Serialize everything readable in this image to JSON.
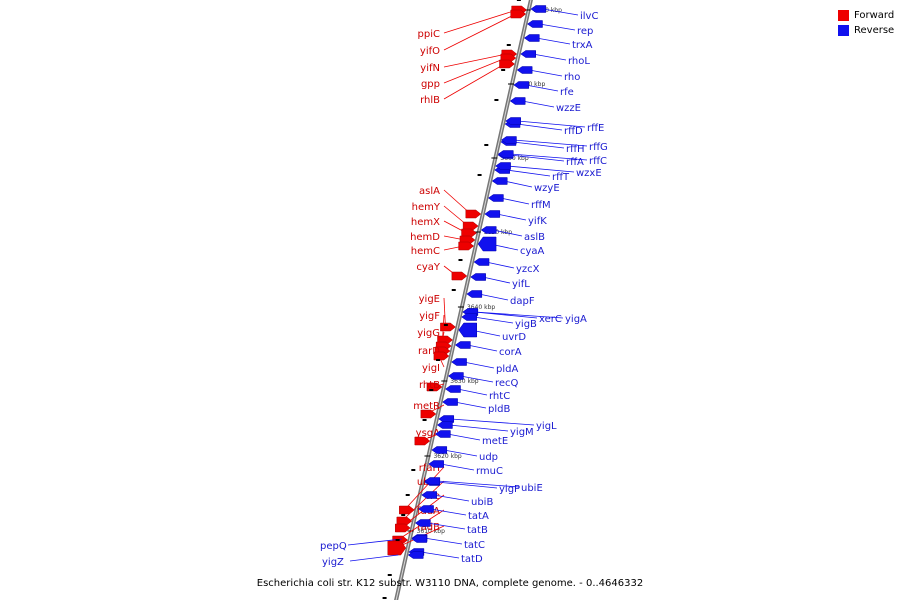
{
  "legend": {
    "forward_label": "Forward",
    "reverse_label": "Reverse",
    "forward_color": "#ee0000",
    "reverse_color": "#1111ee"
  },
  "caption": "Escherichia coli str. K12 substr. W3110 DNA, complete genome. - 0..4646332",
  "ticks": [
    "3680 kbp",
    "3670 kbp",
    "3660 kbp",
    "3650 kbp",
    "3640 kbp",
    "3630 kbp",
    "3620 kbp",
    "3610 kbp"
  ],
  "forward_genes": [
    "ppiC",
    "yifO",
    "yifN",
    "gpp",
    "rhlB",
    "aslA",
    "hemY",
    "hemX",
    "hemD",
    "hemC",
    "cyaY",
    "yigE",
    "yigF",
    "yigG",
    "rarD",
    "yigI",
    "rhtB",
    "metR",
    "ysgA",
    "rfaH",
    "ubiD",
    "fre",
    "fadA",
    "fadB"
  ],
  "reverse_genes": [
    "ilvC",
    "rep",
    "trxA",
    "rhoL",
    "rho",
    "rfe",
    "wzzE",
    "rffD",
    "rffE",
    "rffH",
    "rffG",
    "rffA",
    "rffC",
    "rffT",
    "wzxE",
    "wzyE",
    "rffM",
    "yifK",
    "aslB",
    "cyaA",
    "yzcX",
    "yifL",
    "dapF",
    "xerC",
    "yigA",
    "yigB",
    "uvrD",
    "corA",
    "pldA",
    "recQ",
    "rhtC",
    "pldB",
    "yigL",
    "yigM",
    "metE",
    "udp",
    "rmuC",
    "yigP",
    "ubiE",
    "ubiB",
    "tatA",
    "tatB",
    "tatC",
    "tatD",
    "pepQ",
    "yigZ"
  ]
}
